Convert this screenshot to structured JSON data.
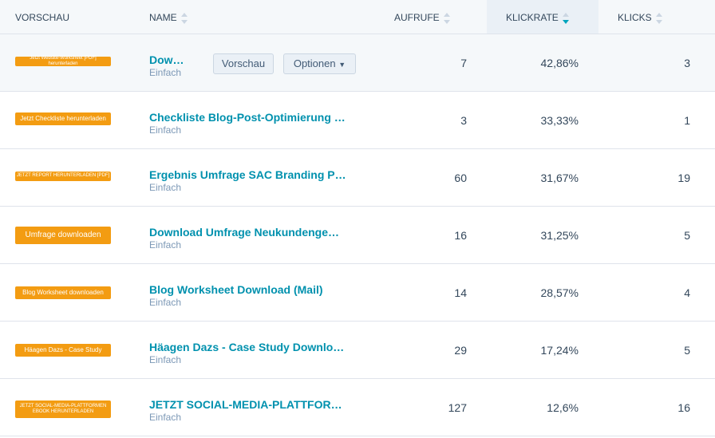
{
  "headers": {
    "preview": "Vorschau",
    "name": "Name",
    "views": "Aufrufe",
    "ctr": "Klickrate",
    "clicks": "Klicks"
  },
  "hover_actions": {
    "preview": "Vorschau",
    "options": "Optionen"
  },
  "rows": [
    {
      "cta": "Jetzt Website-Worksheet [PDF] herunterladen",
      "name": "Dow…",
      "type": "Einfach",
      "views": "7",
      "ctr": "42,86%",
      "clicks": "3"
    },
    {
      "cta": "Jetzt Checkliste herunterladen",
      "name": "Checkliste Blog-Post-Optimierung …",
      "type": "Einfach",
      "views": "3",
      "ctr": "33,33%",
      "clicks": "1"
    },
    {
      "cta": "JETZT REPORT HERUNTERLADEN [PDF]",
      "name": "Ergebnis Umfrage SAC Branding P…",
      "type": "Einfach",
      "views": "60",
      "ctr": "31,67%",
      "clicks": "19"
    },
    {
      "cta": "Umfrage downloaden",
      "name": "Download Umfrage Neukundenge…",
      "type": "Einfach",
      "views": "16",
      "ctr": "31,25%",
      "clicks": "5"
    },
    {
      "cta": "Blog Worksheet downloaden",
      "name": "Blog Worksheet Download (Mail)",
      "type": "Einfach",
      "views": "14",
      "ctr": "28,57%",
      "clicks": "4"
    },
    {
      "cta": "Häagen Dazs - Case Study",
      "name": "Häagen Dazs - Case Study Downlo…",
      "type": "Einfach",
      "views": "29",
      "ctr": "17,24%",
      "clicks": "5"
    },
    {
      "cta": "JETZT SOCIAL-MEDIA-PLATTFORMEN EBOOK HERUNTERLADEN",
      "name": "JETZT SOCIAL-MEDIA-PLATTFOR…",
      "type": "Einfach",
      "views": "127",
      "ctr": "12,6%",
      "clicks": "16"
    }
  ]
}
